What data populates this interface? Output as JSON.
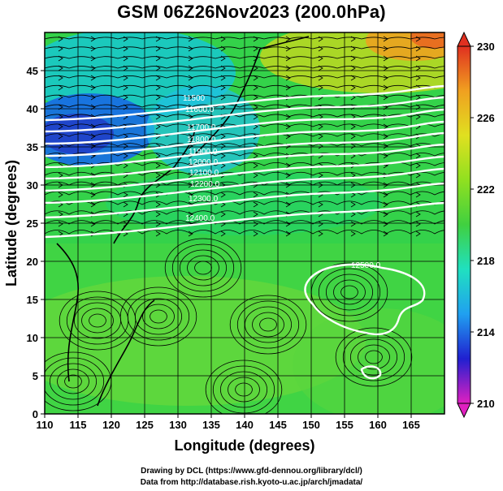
{
  "title": "GSM 06Z26Nov2023 (200.0hPa)",
  "x_axis": {
    "label": "Longitude (degrees)",
    "range": [
      110,
      170
    ],
    "ticks": [
      "110",
      "115",
      "120",
      "125",
      "130",
      "135",
      "140",
      "145",
      "150",
      "155",
      "160",
      "165"
    ]
  },
  "y_axis": {
    "label": "Latitude  (degrees)",
    "range": [
      0,
      50
    ],
    "ticks": [
      "0",
      "5",
      "10",
      "15",
      "20",
      "25",
      "30",
      "35",
      "40",
      "45"
    ]
  },
  "colorbar": {
    "range": [
      210,
      230
    ],
    "labels": [
      "230",
      "226",
      "222",
      "218",
      "214",
      "210"
    ],
    "colors": [
      "#e020c0",
      "#2020d0",
      "#20a0f0",
      "#20e0c0",
      "#40d040",
      "#90e020",
      "#e0e020",
      "#f0a020",
      "#e03020"
    ]
  },
  "contours": {
    "color": "#ffffff",
    "labels": [
      "11500",
      "11600.0",
      "11700.0",
      "11800.0",
      "11900.0",
      "12000.0",
      "12100.0",
      "12200.0",
      "12300.0",
      "12400.0",
      "12500.0"
    ]
  },
  "credits": {
    "line1": "Drawing by DCL (https://www.gfd-dennou.org/library/dcl/)",
    "line2": "Data from http://database.rish.kyoto-u.ac.jp/arch/jmadata/"
  }
}
